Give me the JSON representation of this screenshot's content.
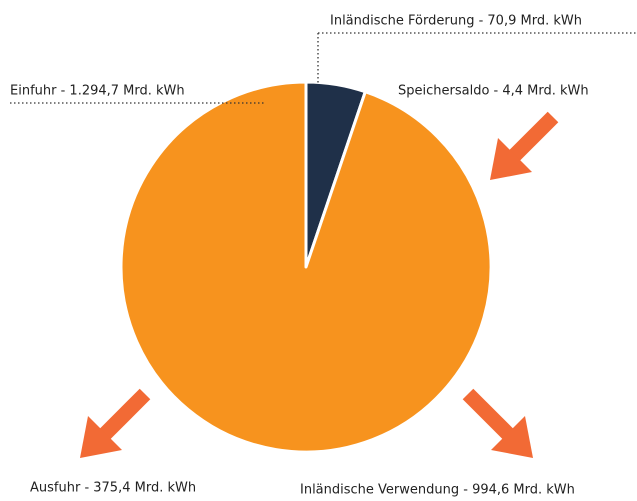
{
  "chart_data": {
    "type": "pie",
    "categories": [
      "Inländische Förderung - 70,9 Mrd. kWh",
      "Einfuhr - 1.294,7 Mrd. kWh"
    ],
    "values": [
      70.9,
      1294.7
    ],
    "colors": [
      "#1f3049",
      "#f7931e"
    ],
    "annotations": [
      "Speichersaldo - 4,4  Mrd. kWh",
      "Ausfuhr - 375,4  Mrd. kWh",
      "Inländische Verwendung - 994,6 Mrd. kWh"
    ]
  }
}
